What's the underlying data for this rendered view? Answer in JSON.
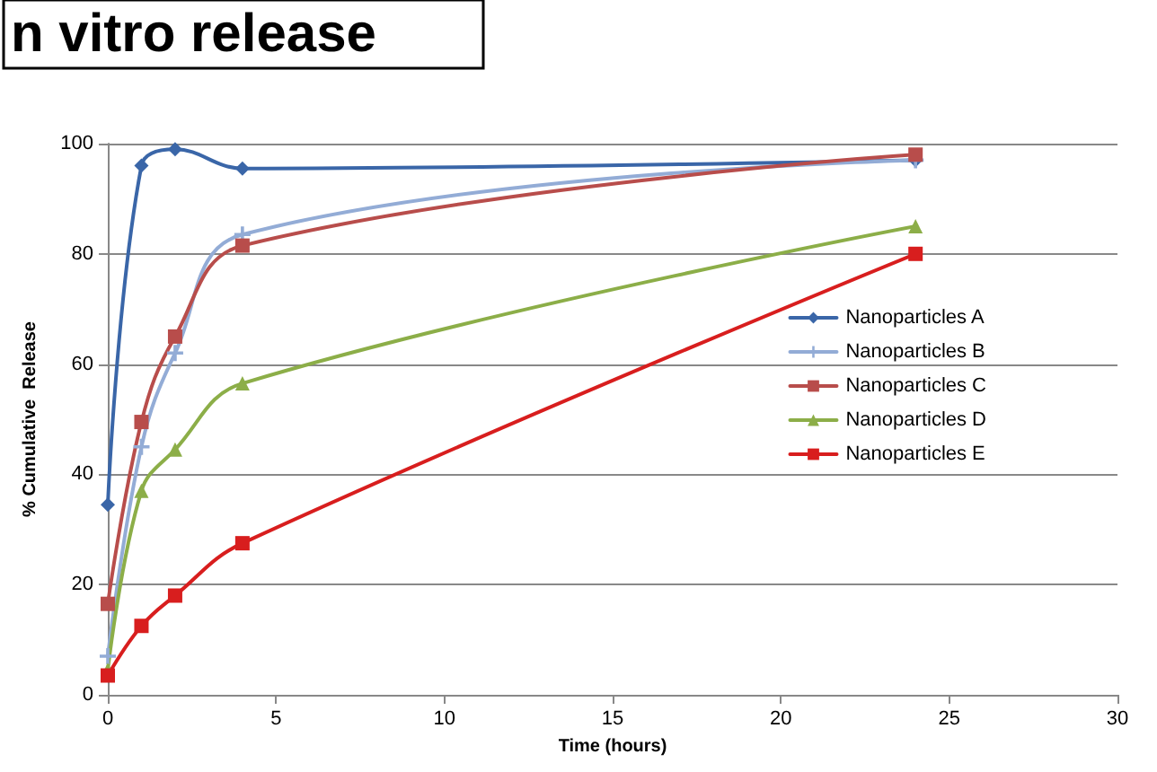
{
  "chart_data": {
    "type": "line",
    "title": "n vitro release",
    "xlabel": "Time (hours)",
    "ylabel": "% Cumulative  Release",
    "x": [
      0,
      1,
      2,
      4,
      24
    ],
    "series": [
      {
        "name": "Nanoparticles A",
        "color": "#3a66a8",
        "marker": "diamond",
        "values": [
          34.5,
          96,
          99,
          95.5,
          97
        ]
      },
      {
        "name": "Nanoparticles B",
        "color": "#93acd6",
        "marker": "cross",
        "values": [
          7,
          45,
          62,
          83.5,
          97
        ]
      },
      {
        "name": "Nanoparticles C",
        "color": "#b84d4b",
        "marker": "square",
        "values": [
          16.5,
          49.5,
          65,
          81.5,
          98
        ]
      },
      {
        "name": "Nanoparticles D",
        "color": "#8cae48",
        "marker": "triangle",
        "values": [
          4.5,
          37,
          44.5,
          56.5,
          85
        ]
      },
      {
        "name": "Nanoparticles E",
        "color": "#d81e1e",
        "marker": "square",
        "values": [
          3.5,
          12.5,
          18,
          27.5,
          80
        ]
      }
    ],
    "xlim": [
      0,
      30
    ],
    "xticks": [
      0,
      5,
      10,
      15,
      20,
      25,
      30
    ],
    "ylim": [
      0,
      100
    ],
    "yticks": [
      0,
      20,
      40,
      60,
      80,
      100
    ],
    "grid": "y",
    "legend": "right",
    "line_style": "solid"
  }
}
